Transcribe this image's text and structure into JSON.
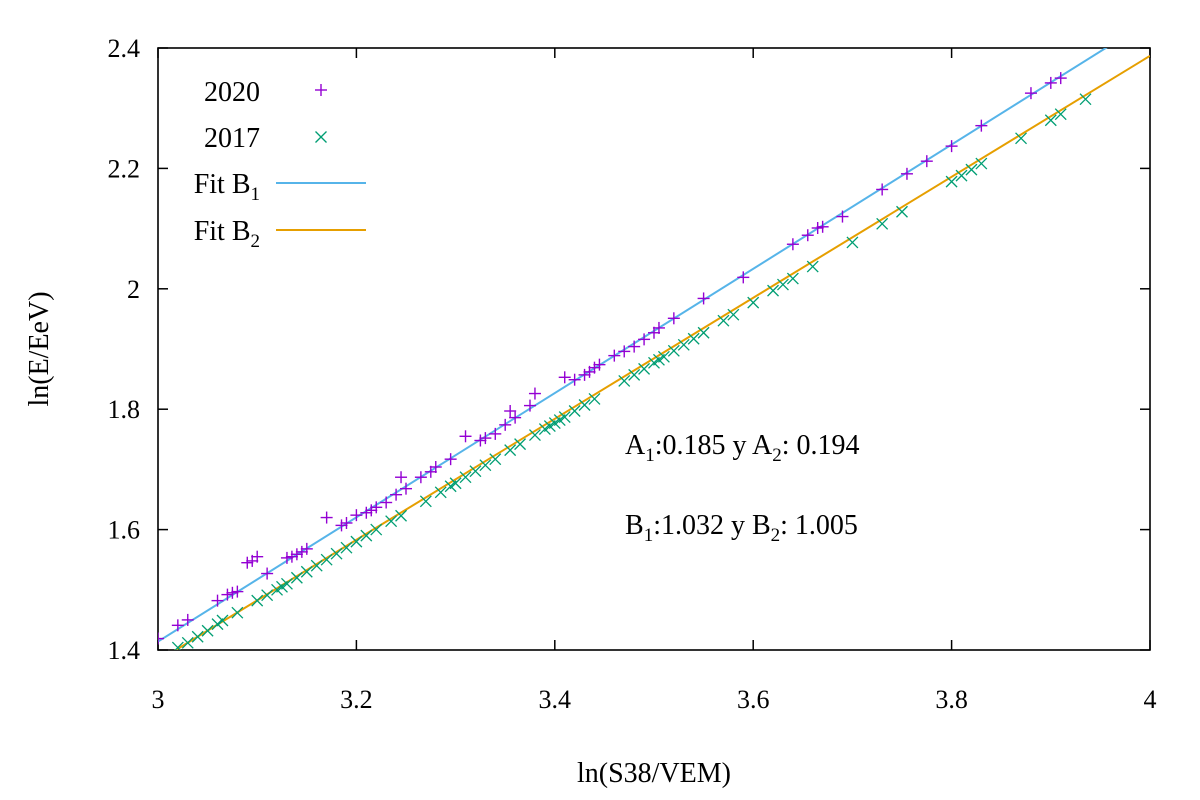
{
  "chart_data": {
    "type": "scatter",
    "xlabel": "ln(S38/VEM)",
    "ylabel": "ln(E/EeV)",
    "xlim": [
      3,
      4
    ],
    "ylim": [
      1.4,
      2.4
    ],
    "x_ticks": [
      3,
      3.2,
      3.4,
      3.6,
      3.8,
      4
    ],
    "x_tick_labels": [
      "3",
      "3.2",
      "3.4",
      "3.6",
      "3.8",
      "4"
    ],
    "y_ticks": [
      1.4,
      1.6,
      1.8,
      2.0,
      2.2,
      2.4
    ],
    "y_tick_labels": [
      "1.4",
      "1.6",
      "1.8",
      "2",
      "2.2",
      "2.4"
    ],
    "legend_position": "top-left",
    "series": [
      {
        "name": "2020",
        "kind": "points",
        "marker": "plus",
        "color": "#9400d3",
        "points": [
          [
            3.0,
            1.419
          ],
          [
            3.02,
            1.441
          ],
          [
            3.03,
            1.45
          ],
          [
            3.06,
            1.482
          ],
          [
            3.07,
            1.492
          ],
          [
            3.075,
            1.495
          ],
          [
            3.08,
            1.497
          ],
          [
            3.09,
            1.545
          ],
          [
            3.095,
            1.548
          ],
          [
            3.1,
            1.555
          ],
          [
            3.11,
            1.527
          ],
          [
            3.13,
            1.553
          ],
          [
            3.135,
            1.555
          ],
          [
            3.14,
            1.559
          ],
          [
            3.145,
            1.563
          ],
          [
            3.15,
            1.568
          ],
          [
            3.17,
            1.62
          ],
          [
            3.185,
            1.607
          ],
          [
            3.19,
            1.611
          ],
          [
            3.2,
            1.624
          ],
          [
            3.21,
            1.628
          ],
          [
            3.215,
            1.632
          ],
          [
            3.22,
            1.637
          ],
          [
            3.23,
            1.645
          ],
          [
            3.24,
            1.658
          ],
          [
            3.245,
            1.687
          ],
          [
            3.25,
            1.668
          ],
          [
            3.265,
            1.687
          ],
          [
            3.275,
            1.696
          ],
          [
            3.28,
            1.704
          ],
          [
            3.295,
            1.717
          ],
          [
            3.31,
            1.755
          ],
          [
            3.325,
            1.748
          ],
          [
            3.33,
            1.752
          ],
          [
            3.34,
            1.759
          ],
          [
            3.35,
            1.774
          ],
          [
            3.355,
            1.797
          ],
          [
            3.36,
            1.786
          ],
          [
            3.375,
            1.806
          ],
          [
            3.38,
            1.826
          ],
          [
            3.41,
            1.853
          ],
          [
            3.42,
            1.849
          ],
          [
            3.43,
            1.857
          ],
          [
            3.435,
            1.862
          ],
          [
            3.44,
            1.869
          ],
          [
            3.445,
            1.874
          ],
          [
            3.46,
            1.889
          ],
          [
            3.47,
            1.896
          ],
          [
            3.48,
            1.904
          ],
          [
            3.49,
            1.916
          ],
          [
            3.5,
            1.927
          ],
          [
            3.505,
            1.935
          ],
          [
            3.52,
            1.951
          ],
          [
            3.55,
            1.984
          ],
          [
            3.59,
            2.019
          ],
          [
            3.64,
            2.074
          ],
          [
            3.655,
            2.089
          ],
          [
            3.665,
            2.101
          ],
          [
            3.67,
            2.103
          ],
          [
            3.69,
            2.12
          ],
          [
            3.73,
            2.165
          ],
          [
            3.755,
            2.191
          ],
          [
            3.775,
            2.212
          ],
          [
            3.8,
            2.237
          ],
          [
            3.83,
            2.271
          ],
          [
            3.88,
            2.325
          ],
          [
            3.9,
            2.342
          ],
          [
            3.91,
            2.35
          ]
        ]
      },
      {
        "name": "2017",
        "kind": "points",
        "marker": "cross",
        "color": "#009e73",
        "points": [
          [
            3.02,
            1.404
          ],
          [
            3.03,
            1.412
          ],
          [
            3.04,
            1.422
          ],
          [
            3.05,
            1.432
          ],
          [
            3.06,
            1.443
          ],
          [
            3.065,
            1.449
          ],
          [
            3.08,
            1.462
          ],
          [
            3.1,
            1.482
          ],
          [
            3.11,
            1.491
          ],
          [
            3.12,
            1.5
          ],
          [
            3.125,
            1.505
          ],
          [
            3.13,
            1.51
          ],
          [
            3.14,
            1.52
          ],
          [
            3.15,
            1.53
          ],
          [
            3.16,
            1.54
          ],
          [
            3.17,
            1.55
          ],
          [
            3.18,
            1.56
          ],
          [
            3.19,
            1.57
          ],
          [
            3.2,
            1.58
          ],
          [
            3.21,
            1.59
          ],
          [
            3.22,
            1.6
          ],
          [
            3.235,
            1.614
          ],
          [
            3.245,
            1.623
          ],
          [
            3.27,
            1.647
          ],
          [
            3.285,
            1.662
          ],
          [
            3.295,
            1.672
          ],
          [
            3.3,
            1.677
          ],
          [
            3.31,
            1.687
          ],
          [
            3.32,
            1.697
          ],
          [
            3.33,
            1.707
          ],
          [
            3.34,
            1.717
          ],
          [
            3.355,
            1.732
          ],
          [
            3.365,
            1.742
          ],
          [
            3.38,
            1.757
          ],
          [
            3.39,
            1.767
          ],
          [
            3.395,
            1.772
          ],
          [
            3.4,
            1.777
          ],
          [
            3.405,
            1.782
          ],
          [
            3.41,
            1.787
          ],
          [
            3.42,
            1.797
          ],
          [
            3.43,
            1.807
          ],
          [
            3.44,
            1.817
          ],
          [
            3.47,
            1.847
          ],
          [
            3.48,
            1.857
          ],
          [
            3.49,
            1.867
          ],
          [
            3.5,
            1.877
          ],
          [
            3.505,
            1.882
          ],
          [
            3.51,
            1.887
          ],
          [
            3.52,
            1.897
          ],
          [
            3.53,
            1.907
          ],
          [
            3.54,
            1.917
          ],
          [
            3.55,
            1.927
          ],
          [
            3.57,
            1.947
          ],
          [
            3.58,
            1.957
          ],
          [
            3.6,
            1.977
          ],
          [
            3.62,
            1.997
          ],
          [
            3.63,
            2.007
          ],
          [
            3.64,
            2.017
          ],
          [
            3.66,
            2.037
          ],
          [
            3.7,
            2.077
          ],
          [
            3.73,
            2.108
          ],
          [
            3.75,
            2.128
          ],
          [
            3.8,
            2.178
          ],
          [
            3.81,
            2.188
          ],
          [
            3.82,
            2.198
          ],
          [
            3.83,
            2.208
          ],
          [
            3.87,
            2.25
          ],
          [
            3.9,
            2.28
          ],
          [
            3.91,
            2.29
          ],
          [
            3.935,
            2.315
          ]
        ]
      },
      {
        "name": "Fit B₁",
        "kind": "line",
        "color": "#56b4e9",
        "slope": 1.032,
        "intercept": -1.682
      },
      {
        "name": "Fit B₂",
        "kind": "line",
        "color": "#e69f00",
        "slope": 1.005,
        "intercept": -1.633
      }
    ],
    "legend": [
      {
        "label": "2020",
        "marker": "plus"
      },
      {
        "label": "2017",
        "marker": "cross"
      },
      {
        "label_main": "Fit B",
        "label_sub": "1",
        "marker": "line"
      },
      {
        "label_main": "Fit B",
        "label_sub": "2",
        "marker": "line"
      }
    ],
    "annotations": {
      "line1": {
        "a": "A",
        "a_sub": "1",
        "a_val": ":0.185  y A",
        "b_sub": "2",
        "b_val": ": 0.194"
      },
      "line2": {
        "a": "B",
        "a_sub": "1",
        "a_val": ":1.032  y B",
        "b_sub": "2",
        "b_val": ": 1.005"
      }
    }
  }
}
